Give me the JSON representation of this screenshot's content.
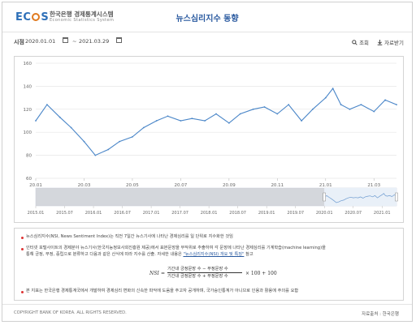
{
  "header": {
    "logo_text_1": "EC",
    "logo_text_2": "S",
    "org_name": "한국은행 경제통계시스템",
    "org_sub": "Economic Statistics System",
    "page_title": "뉴스심리지수 동향"
  },
  "toolbar": {
    "period_label": "시점",
    "start_date": "2020.01.01",
    "end_date": "2021.03.29",
    "separator": "~",
    "search_label": "조회",
    "download_label": "자료받기"
  },
  "chart_data": {
    "type": "line",
    "title": "",
    "xlabel": "",
    "ylabel": "",
    "ylim": [
      60,
      160
    ],
    "yticks": [
      "60",
      "80",
      "100",
      "120",
      "140",
      "160"
    ],
    "xticks": [
      "20.01",
      "20.03",
      "20.05",
      "20.07",
      "20.09",
      "20.11",
      "21.01",
      "21.03"
    ],
    "series": [
      {
        "values_by_month": [
          {
            "x": "2020-01",
            "y": 110
          },
          {
            "x": "2020-01-15",
            "y": 124
          },
          {
            "x": "2020-02",
            "y": 113
          },
          {
            "x": "2020-02-15",
            "y": 104
          },
          {
            "x": "2020-03",
            "y": 92
          },
          {
            "x": "2020-03-15",
            "y": 80
          },
          {
            "x": "2020-04",
            "y": 85
          },
          {
            "x": "2020-04-15",
            "y": 92
          },
          {
            "x": "2020-05",
            "y": 96
          },
          {
            "x": "2020-05-15",
            "y": 104
          },
          {
            "x": "2020-06",
            "y": 110
          },
          {
            "x": "2020-06-15",
            "y": 114
          },
          {
            "x": "2020-07",
            "y": 110
          },
          {
            "x": "2020-07-15",
            "y": 112
          },
          {
            "x": "2020-08",
            "y": 110
          },
          {
            "x": "2020-08-15",
            "y": 116
          },
          {
            "x": "2020-09",
            "y": 108
          },
          {
            "x": "2020-09-15",
            "y": 116
          },
          {
            "x": "2020-10",
            "y": 120
          },
          {
            "x": "2020-10-15",
            "y": 122
          },
          {
            "x": "2020-11",
            "y": 116
          },
          {
            "x": "2020-11-15",
            "y": 124
          },
          {
            "x": "2020-12",
            "y": 110
          },
          {
            "x": "2020-12-15",
            "y": 120
          },
          {
            "x": "2021-01",
            "y": 130
          },
          {
            "x": "2021-01-10",
            "y": 138
          },
          {
            "x": "2021-01-20",
            "y": 124
          },
          {
            "x": "2021-02",
            "y": 120
          },
          {
            "x": "2021-02-15",
            "y": 124
          },
          {
            "x": "2021-03",
            "y": 118
          },
          {
            "x": "2021-03-15",
            "y": 128
          },
          {
            "x": "2021-03-29",
            "y": 124
          }
        ]
      }
    ],
    "navigator_ticks": [
      "2015.01",
      "2015.07",
      "2016.01",
      "2016.07",
      "2017.01",
      "2017.07",
      "2018.01",
      "2018.07",
      "2019.01",
      "2019.07",
      "2020.01",
      "2020.07",
      "2021.01"
    ],
    "navigator_selected": [
      "2020.01",
      "2021.03"
    ],
    "line_color": "#4a86c8"
  },
  "notes": {
    "n1": "뉴스심리지수(NSI, News Sentiment Index)는 직전 7일간 뉴스기사에 나타난 경제심리를 일 단위로 지수화한 것임",
    "n2a": "인터넷 포털사이트의 경제분야 뉴스기사(한국지능정보사회진흥원 제공)에서 표본문장을 무작위로 추출하여 각 문장에 나타난 경제심리를 기계학습(machine learning)을",
    "n2b": "통해 긍정, 부정, 중립으로 분류하고 다음과 같은 산식에 따라 지수를 산출. 자세한 내용은",
    "n2_link": "\"뉴스심리지수(NSI) 개요 및 특징\"",
    "n2c": "참고",
    "formula_lhs": "NSI",
    "formula_num": "기간내 긍정문장 수 − 부정문장 수",
    "formula_den": "기간내 긍정문장 수 + 부정문장 수",
    "formula_rhs": "× 100 + 100",
    "n3": "본 지표는 한국은행 경제통계국에서 개발하여 경제심리 변화의 신속한 파악에 도움을 주고자 공개하며, 국가승인통계가 아니므로 인용과 활용에 주의를 요함"
  },
  "footer": {
    "copyright": "COPYRIGHT BANK OF KOREA. ALL RIGHTS RESERVED.",
    "source": "자료출처 : 한국은행"
  }
}
